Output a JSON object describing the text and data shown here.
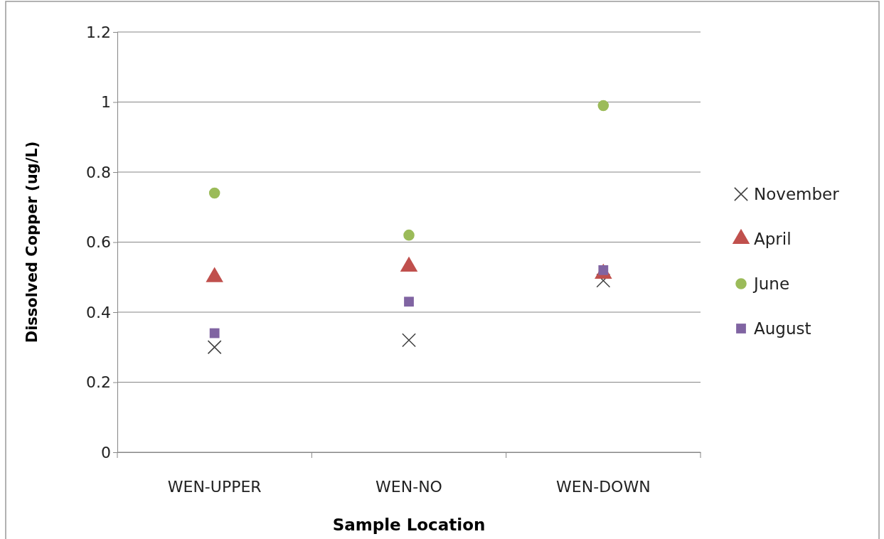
{
  "chart_data": {
    "type": "scatter",
    "xlabel": "Sample Location",
    "ylabel": "Dissolved Copper (ug/L)",
    "categories": [
      "WEN-UPPER",
      "WEN-NO",
      "WEN-DOWN"
    ],
    "ylim": [
      0,
      1.2
    ],
    "yticks": [
      0,
      0.2,
      0.4,
      0.6,
      0.8,
      1,
      1.2
    ],
    "grid": "y",
    "legend": "right",
    "series": [
      {
        "name": "November",
        "color": "#404040",
        "marker": "cross",
        "values": [
          0.3,
          0.32,
          0.49
        ]
      },
      {
        "name": "April",
        "color": "#c0504d",
        "marker": "triangle",
        "values": [
          0.5,
          0.53,
          0.51
        ]
      },
      {
        "name": "June",
        "color": "#9bbb59",
        "marker": "circle",
        "values": [
          0.74,
          0.62,
          0.99
        ]
      },
      {
        "name": "August",
        "color": "#8064a2",
        "marker": "square",
        "values": [
          0.34,
          0.43,
          0.52
        ]
      }
    ]
  }
}
